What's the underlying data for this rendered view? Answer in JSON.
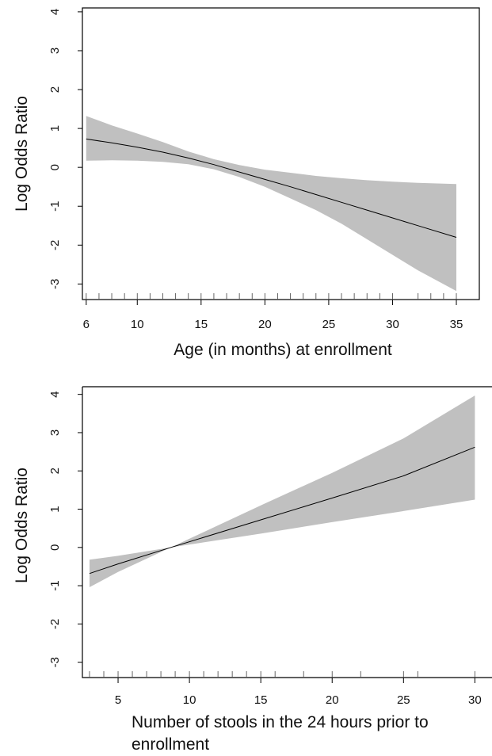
{
  "chart_data": [
    {
      "type": "line",
      "title": "",
      "xlabel_lines": [
        "Age (in months) at enrollment"
      ],
      "ylabel": "Log Odds Ratio",
      "xlim": [
        5.7,
        36.8
      ],
      "ylim": [
        -3.4,
        4.1
      ],
      "xticks": [
        6,
        10,
        15,
        20,
        25,
        30,
        35
      ],
      "yticks": [
        -3,
        -2,
        -1,
        0,
        1,
        2,
        3,
        4
      ],
      "rug": [
        6,
        7,
        8,
        9,
        10,
        11,
        12,
        13,
        14,
        15,
        16,
        17,
        18,
        19,
        20,
        21,
        22,
        23,
        24,
        25,
        26,
        27,
        28,
        29,
        30,
        32,
        33,
        34,
        35
      ],
      "grid": false,
      "series": [
        {
          "x": [
            6,
            8,
            10,
            12,
            14,
            16,
            18,
            20,
            22,
            24,
            26,
            28,
            30,
            32,
            35
          ],
          "y": [
            0.73,
            0.63,
            0.52,
            0.39,
            0.24,
            0.07,
            -0.12,
            -0.31,
            -0.5,
            -0.7,
            -0.9,
            -1.1,
            -1.3,
            -1.5,
            -1.8
          ],
          "lower": [
            0.17,
            0.18,
            0.17,
            0.14,
            0.08,
            -0.05,
            -0.25,
            -0.5,
            -0.8,
            -1.1,
            -1.45,
            -1.85,
            -2.25,
            -2.65,
            -3.18
          ],
          "upper": [
            1.32,
            1.08,
            0.87,
            0.65,
            0.41,
            0.21,
            0.06,
            -0.06,
            -0.14,
            -0.22,
            -0.28,
            -0.33,
            -0.37,
            -0.4,
            -0.43
          ]
        }
      ]
    },
    {
      "type": "line",
      "title": "",
      "xlabel_lines": [
        "Number of stools in the 24 hours prior to",
        "enrollment"
      ],
      "ylabel": "Log Odds Ratio",
      "xlim": [
        2.5,
        31.2
      ],
      "ylim": [
        -3.4,
        4.2
      ],
      "xticks": [
        5,
        10,
        15,
        20,
        25,
        30
      ],
      "yticks": [
        -3,
        -2,
        -1,
        0,
        1,
        2,
        3,
        4
      ],
      "rug": [
        3,
        4,
        5,
        6,
        7,
        8,
        9,
        10,
        11,
        12,
        13,
        14,
        15,
        16,
        18,
        20,
        22,
        25,
        26,
        30
      ],
      "grid": false,
      "series": [
        {
          "x": [
            3,
            5,
            8.7,
            15,
            20,
            25,
            30
          ],
          "y": [
            -0.68,
            -0.43,
            0.0,
            0.72,
            1.29,
            1.87,
            2.62
          ],
          "lower": [
            -1.04,
            -0.64,
            0.0,
            0.36,
            0.66,
            0.95,
            1.25
          ],
          "upper": [
            -0.32,
            -0.22,
            0.0,
            1.1,
            1.95,
            2.85,
            3.97
          ]
        }
      ]
    }
  ],
  "colors": {
    "band": "#c0c0c0",
    "line": "#000000",
    "axis": "#000000",
    "text": "#111111"
  }
}
